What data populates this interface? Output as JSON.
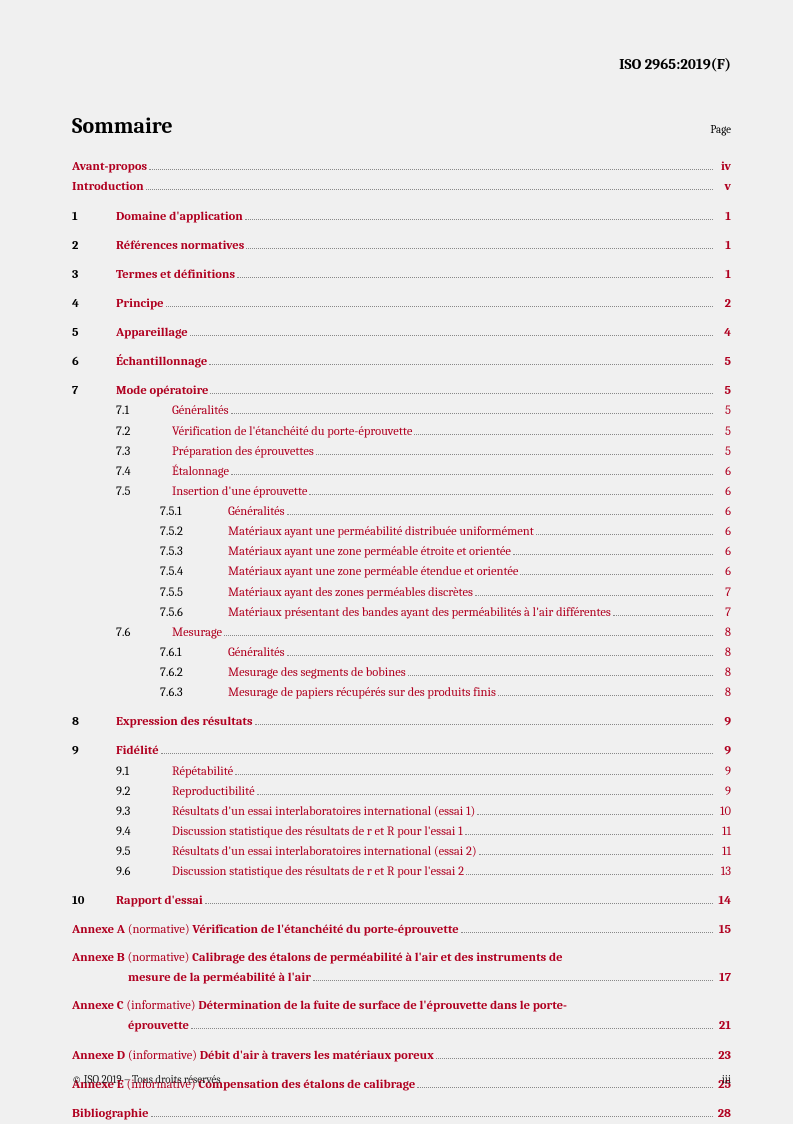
{
  "doc_header": "ISO 2965:2019(F)",
  "title": "Sommaire",
  "page_label": "Page",
  "front": [
    {
      "label": "Avant-propos",
      "page": "iv"
    },
    {
      "label": "Introduction",
      "page": "v"
    }
  ],
  "sections": [
    {
      "num": "1",
      "label": "Domaine d'application",
      "page": "1"
    },
    {
      "num": "2",
      "label": "Références normatives",
      "page": "1"
    },
    {
      "num": "3",
      "label": "Termes et définitions",
      "page": "1"
    },
    {
      "num": "4",
      "label": "Principe",
      "page": "2"
    },
    {
      "num": "5",
      "label": "Appareillage",
      "page": "4"
    },
    {
      "num": "6",
      "label": "Échantillonnage",
      "page": "5"
    },
    {
      "num": "7",
      "label": "Mode opératoire",
      "page": "5",
      "children": [
        {
          "num": "7.1",
          "label": "Généralités",
          "page": "5"
        },
        {
          "num": "7.2",
          "label": "Vérification de l'étanchéité du porte-éprouvette",
          "page": "5"
        },
        {
          "num": "7.3",
          "label": "Préparation des éprouvettes",
          "page": "5"
        },
        {
          "num": "7.4",
          "label": "Étalonnage",
          "page": "6"
        },
        {
          "num": "7.5",
          "label": "Insertion d'une éprouvette",
          "page": "6",
          "children": [
            {
              "num": "7.5.1",
              "label": "Généralités",
              "page": "6"
            },
            {
              "num": "7.5.2",
              "label": "Matériaux ayant une perméabilité distribuée uniformément",
              "page": "6"
            },
            {
              "num": "7.5.3",
              "label": "Matériaux ayant une zone perméable étroite et orientée",
              "page": "6"
            },
            {
              "num": "7.5.4",
              "label": "Matériaux ayant une zone perméable étendue et orientée",
              "page": "6"
            },
            {
              "num": "7.5.5",
              "label": "Matériaux ayant des zones perméables discrètes",
              "page": "7"
            },
            {
              "num": "7.5.6",
              "label": "Matériaux présentant des bandes ayant des perméabilités à l'air différentes",
              "page": "7"
            }
          ]
        },
        {
          "num": "7.6",
          "label": "Mesurage",
          "page": "8",
          "children": [
            {
              "num": "7.6.1",
              "label": "Généralités",
              "page": "8"
            },
            {
              "num": "7.6.2",
              "label": "Mesurage des segments de bobines",
              "page": "8"
            },
            {
              "num": "7.6.3",
              "label": "Mesurage de papiers récupérés sur des produits finis",
              "page": "8"
            }
          ]
        }
      ]
    },
    {
      "num": "8",
      "label": "Expression des résultats",
      "page": "9"
    },
    {
      "num": "9",
      "label": "Fidélité",
      "page": "9",
      "children": [
        {
          "num": "9.1",
          "label": "Répétabilité",
          "page": "9"
        },
        {
          "num": "9.2",
          "label": "Reproductibilité",
          "page": "9"
        },
        {
          "num": "9.3",
          "label": "Résultats d'un essai interlaboratoires international (essai 1)",
          "page": "10"
        },
        {
          "num": "9.4",
          "label": "Discussion statistique des résultats de r et R pour l'essai 1",
          "page": "11"
        },
        {
          "num": "9.5",
          "label": "Résultats d'un essai interlaboratoires international (essai 2)",
          "page": "11"
        },
        {
          "num": "9.6",
          "label": "Discussion statistique des résultats de r et R pour l'essai 2",
          "page": "13"
        }
      ]
    },
    {
      "num": "10",
      "label": "Rapport d'essai",
      "page": "14"
    }
  ],
  "annexes": [
    {
      "prefix": "Annexe A",
      "note": " (normative) ",
      "title": "Vérification de l'étanchéité du porte-éprouvette",
      "page": "15"
    },
    {
      "prefix": "Annexe B",
      "note": " (normative) ",
      "title": "Calibrage des étalons de perméabilité à l'air et des instruments de",
      "cont": "mesure de la perméabilité à l'air",
      "page": "17"
    },
    {
      "prefix": "Annexe C",
      "note": " (informative) ",
      "title": "Détermination de la fuite de surface de l'éprouvette dans le porte-",
      "cont": "éprouvette",
      "page": "21"
    },
    {
      "prefix": "Annexe D",
      "note": " (informative) ",
      "title": "Débit d'air à travers les matériaux poreux",
      "page": "23"
    },
    {
      "prefix": "Annexe E",
      "note": " (informative) ",
      "title": "Compensation des étalons de calibrage",
      "page": "25"
    }
  ],
  "biblio": {
    "label": "Bibliographie",
    "page": "28"
  },
  "footer_left": "© ISO 2019 – Tous droits réservés",
  "footer_right": "iii",
  "colors": {
    "link": "#b00020",
    "dots": "#888888",
    "text": "#000000",
    "bg": "#f0f0f0"
  }
}
